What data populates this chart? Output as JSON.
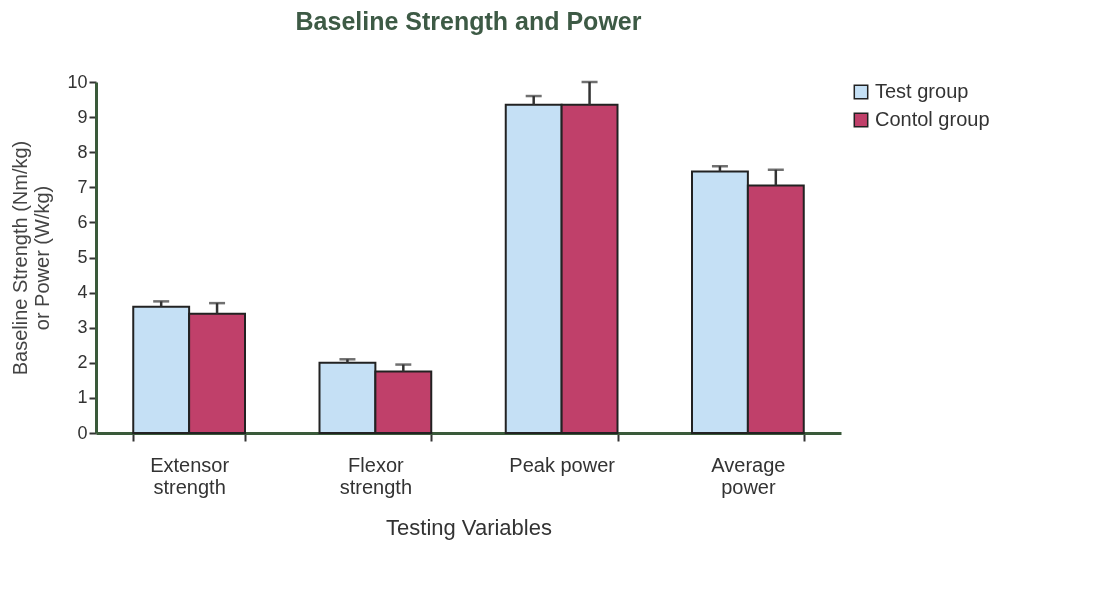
{
  "chart_data": {
    "type": "bar",
    "title": "Baseline Strength and Power",
    "xlabel": "Testing Variables",
    "ylabel": "Baseline Strength (Nm/kg) or Power  (W/kg)",
    "categories": [
      "Extensor strength",
      "Flexor strength",
      "Peak power",
      "Average power"
    ],
    "series": [
      {
        "name": "Test group",
        "color": "#c5e0f5",
        "values": [
          3.6,
          2.0,
          9.35,
          7.45
        ],
        "errors": [
          [
            3.6,
            3.75
          ],
          [
            2.0,
            2.1
          ],
          [
            9.35,
            9.6
          ],
          [
            7.45,
            7.6
          ]
        ]
      },
      {
        "name": "Contol group",
        "color": "#c0406a",
        "values": [
          3.4,
          1.75,
          9.35,
          7.05
        ],
        "errors": [
          [
            3.4,
            3.7
          ],
          [
            1.75,
            1.95
          ],
          [
            9.35,
            10.0
          ],
          [
            7.05,
            7.5
          ]
        ]
      }
    ],
    "ylim": [
      0,
      10
    ],
    "yticks": [
      0,
      1,
      2,
      3,
      4,
      5,
      6,
      7,
      8,
      9,
      10
    ],
    "grid": false,
    "legend": "right"
  }
}
